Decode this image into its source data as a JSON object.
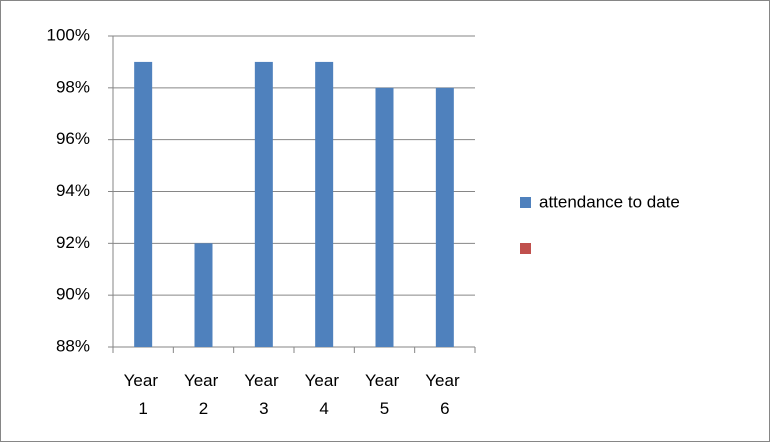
{
  "chart_data": {
    "type": "bar",
    "categories": [
      "Year 1",
      "Year 2",
      "Year 3",
      "Year 4",
      "Year 5",
      "Year 6"
    ],
    "series": [
      {
        "name": "attendance to date",
        "color": "#4f81bd",
        "values": [
          99,
          92,
          99,
          99,
          98,
          98
        ]
      },
      {
        "color": "#c0504d",
        "values": [
          null,
          null,
          null,
          null,
          null,
          null
        ]
      }
    ],
    "ylim": [
      88,
      100
    ],
    "yticks": [
      {
        "value": 88,
        "label": "88%"
      },
      {
        "value": 90,
        "label": "90%"
      },
      {
        "value": 92,
        "label": "92%"
      },
      {
        "value": 94,
        "label": "94%"
      },
      {
        "value": 96,
        "label": "96%"
      },
      {
        "value": 98,
        "label": "98%"
      },
      {
        "value": 100,
        "label": "100%"
      }
    ],
    "grid": true,
    "legend": "right"
  }
}
